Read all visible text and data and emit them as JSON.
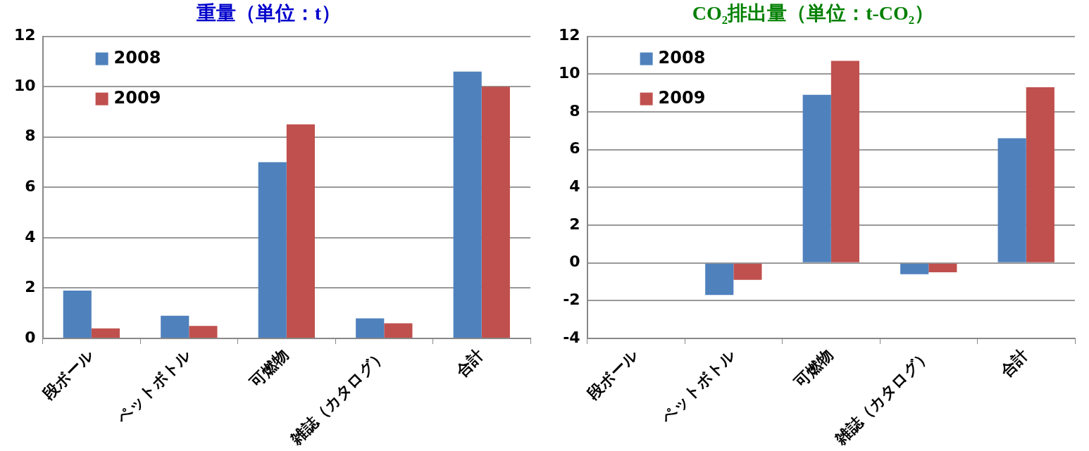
{
  "chart_data": [
    {
      "type": "bar",
      "title": "重量（単位：t）",
      "categories": [
        "段ボール",
        "ペットボトル",
        "可燃物",
        "雑誌（カタログ）",
        "合計"
      ],
      "series": [
        {
          "name": "2008",
          "color": "#4f81bd",
          "values": [
            1.9,
            0.9,
            7.0,
            0.8,
            10.6
          ]
        },
        {
          "name": "2009",
          "color": "#c0504d",
          "values": [
            0.4,
            0.5,
            8.5,
            0.6,
            10.0
          ]
        }
      ],
      "ylim": [
        0,
        12
      ],
      "yticks": [
        0,
        2,
        4,
        6,
        8,
        10,
        12
      ],
      "grid": "y",
      "legend": "top left"
    },
    {
      "type": "bar",
      "title": "CO₂排出量（単位：t-CO₂）",
      "categories": [
        "段ボール",
        "ペットボトル",
        "可燃物",
        "雑誌（カタログ）",
        "合計"
      ],
      "series": [
        {
          "name": "2008",
          "color": "#4f81bd",
          "values": [
            0,
            -1.7,
            8.9,
            -0.6,
            6.6
          ]
        },
        {
          "name": "2009",
          "color": "#c0504d",
          "values": [
            0,
            -0.9,
            10.7,
            -0.5,
            9.3
          ]
        }
      ],
      "ylim": [
        -4,
        12
      ],
      "yticks": [
        -4,
        -2,
        0,
        2,
        4,
        6,
        8,
        10,
        12
      ],
      "grid": "y",
      "legend": "top left"
    }
  ]
}
